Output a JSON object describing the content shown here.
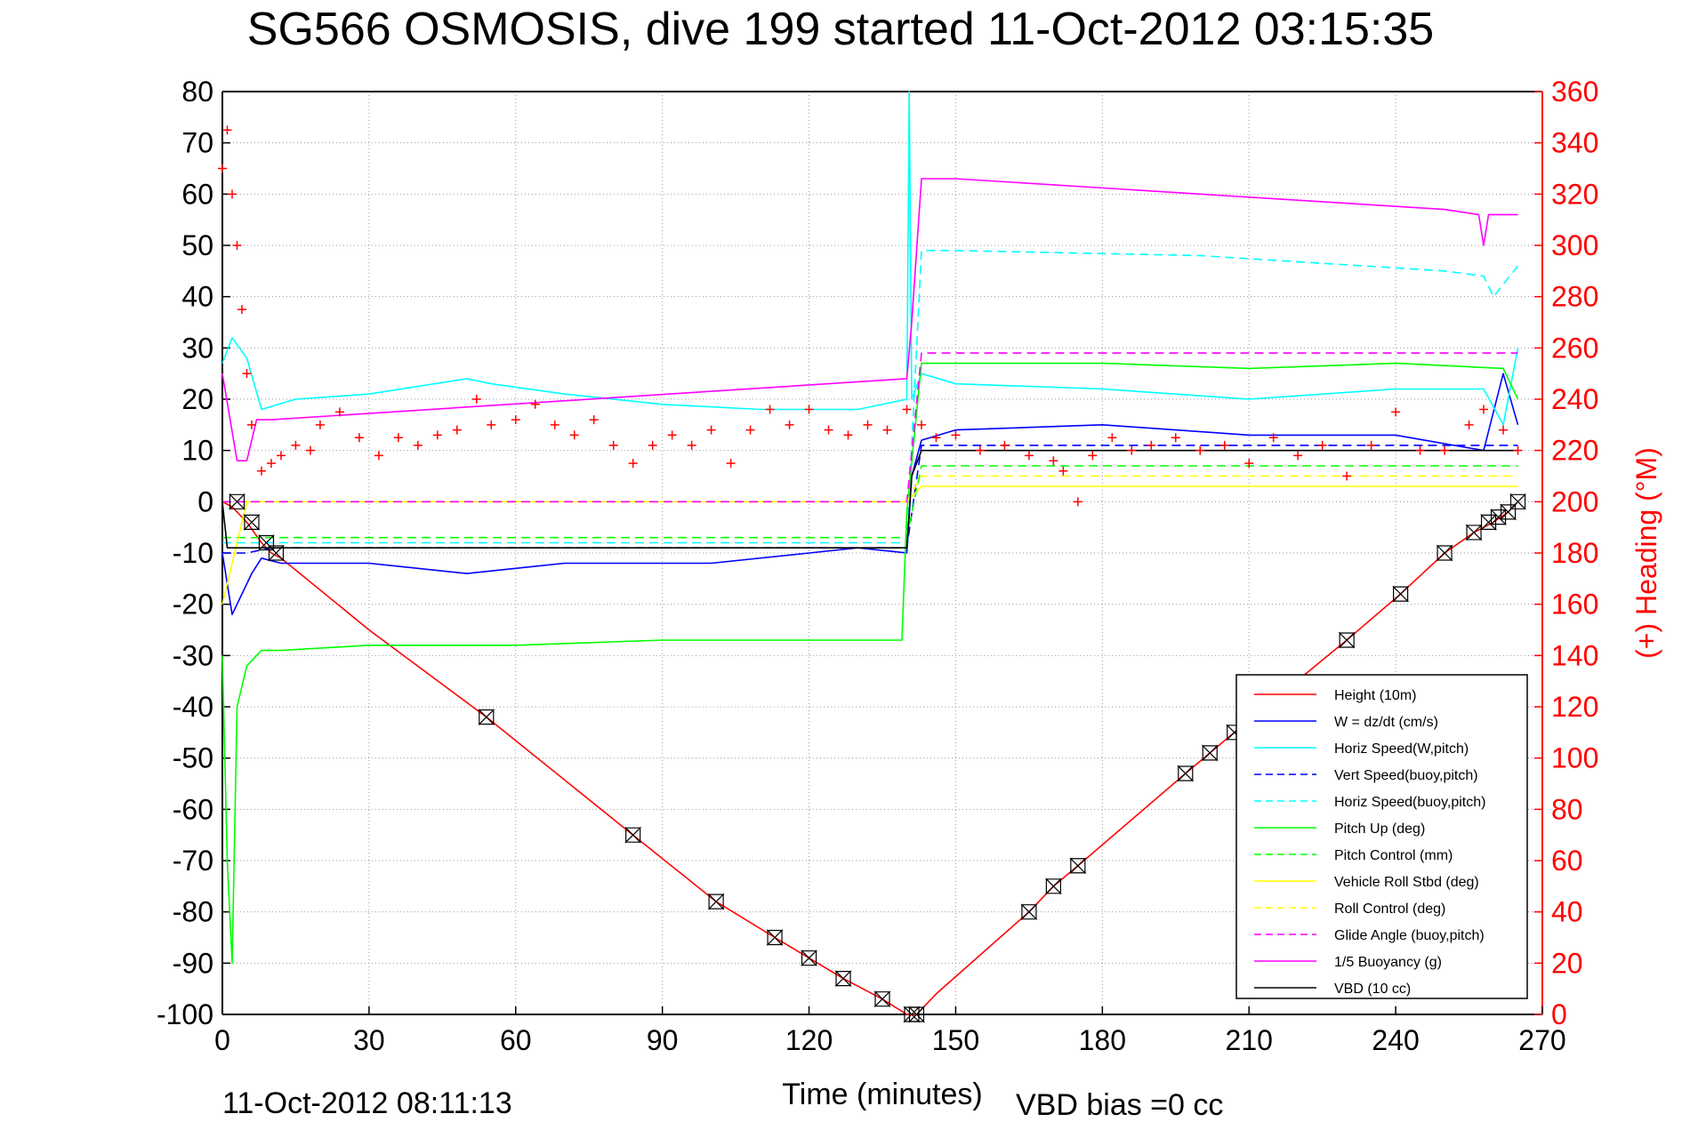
{
  "chart_data": {
    "type": "line",
    "title": "SG566 OSMOSIS, dive 199 started 11-Oct-2012 03:15:35",
    "xlabel": "Time (minutes)",
    "ylabel_left": "",
    "ylabel_right": "(+) Heading (°M)",
    "footer_left": "11-Oct-2012 08:11:13",
    "footer_right": "VBD bias =0 cc",
    "xlim": [
      0,
      270
    ],
    "ylim_left": [
      -100,
      80
    ],
    "ylim_right": [
      0,
      360
    ],
    "x_ticks": [
      "0",
      "30",
      "60",
      "90",
      "120",
      "150",
      "180",
      "210",
      "240",
      "270"
    ],
    "y_ticks_left": [
      "80",
      "70",
      "60",
      "50",
      "40",
      "30",
      "20",
      "10",
      "0",
      "-10",
      "-20",
      "-30",
      "-40",
      "-50",
      "-60",
      "-70",
      "-80",
      "-90",
      "-100"
    ],
    "y_ticks_right": [
      "360",
      "340",
      "320",
      "300",
      "280",
      "260",
      "240",
      "220",
      "200",
      "180",
      "160",
      "140",
      "120",
      "100",
      "80",
      "60",
      "40",
      "20",
      "0"
    ],
    "grid": true,
    "legend_position": "bottom-right",
    "series": [
      {
        "name": "Height (10m)",
        "color": "#ff0000",
        "style": "solid",
        "x": [
          0,
          2,
          5,
          8,
          10,
          12,
          30,
          54,
          84,
          101,
          113,
          120,
          127,
          135,
          140,
          142,
          146,
          165,
          170,
          175,
          197,
          202,
          207,
          230,
          241,
          250,
          256,
          260,
          263,
          265
        ],
        "y": [
          0,
          -1,
          -4,
          -8,
          -10,
          -11,
          -25,
          -42,
          -65,
          -78,
          -85,
          -89,
          -93,
          -97,
          -100,
          -100,
          -96,
          -80,
          -75,
          -71,
          -53,
          -49,
          -45,
          -27,
          -18,
          -10,
          -6,
          -4,
          -2,
          0
        ]
      },
      {
        "name": "W = dz/dt (cm/s)",
        "color": "#0000ff",
        "style": "solid",
        "x": [
          0,
          2,
          4,
          6,
          8,
          12,
          30,
          50,
          70,
          100,
          120,
          130,
          140,
          141,
          143,
          150,
          180,
          210,
          240,
          258,
          262,
          265
        ],
        "y": [
          -10,
          -22,
          -18,
          -14,
          -11,
          -12,
          -12,
          -14,
          -12,
          -12,
          -10,
          -9,
          -10,
          5,
          12,
          14,
          15,
          13,
          13,
          10,
          25,
          15
        ]
      },
      {
        "name": "Horiz Speed(W,pitch)",
        "color": "#00ffff",
        "style": "solid",
        "x": [
          0,
          2,
          5,
          8,
          15,
          30,
          50,
          55,
          70,
          90,
          110,
          130,
          140,
          140.5,
          141,
          143,
          150,
          180,
          210,
          240,
          258,
          262,
          265
        ],
        "y": [
          27,
          32,
          28,
          18,
          20,
          21,
          24,
          23,
          21,
          19,
          18,
          18,
          20,
          80,
          20,
          25,
          23,
          22,
          20,
          22,
          22,
          15,
          30
        ]
      },
      {
        "name": "Vert Speed(buoy,pitch)",
        "color": "#0000ff",
        "style": "dashed",
        "x": [
          0,
          5,
          10,
          140,
          143,
          150,
          260,
          265
        ],
        "y": [
          -10,
          -10,
          -9,
          -9,
          11,
          11,
          11,
          11
        ]
      },
      {
        "name": "Horiz Speed(buoy,pitch)",
        "color": "#00ffff",
        "style": "dashed",
        "x": [
          0,
          5,
          10,
          140,
          143,
          150,
          200,
          250,
          258,
          260,
          265
        ],
        "y": [
          -8,
          -8,
          -8,
          -8,
          49,
          49,
          48,
          45,
          44,
          40,
          46
        ]
      },
      {
        "name": "Pitch Up (deg)",
        "color": "#00ff00",
        "style": "solid",
        "x": [
          0,
          1,
          2,
          3,
          5,
          8,
          12,
          30,
          60,
          90,
          120,
          139,
          140,
          143,
          150,
          180,
          210,
          240,
          262,
          265
        ],
        "y": [
          -30,
          -70,
          -90,
          -40,
          -32,
          -29,
          -29,
          -28,
          -28,
          -27,
          -27,
          -27,
          -2,
          27,
          27,
          27,
          26,
          27,
          26,
          20
        ]
      },
      {
        "name": "Pitch Control (mm)",
        "color": "#00ff00",
        "style": "dashed",
        "x": [
          0,
          5,
          10,
          140,
          143,
          150,
          265
        ],
        "y": [
          -7,
          -7,
          -7,
          -7,
          7,
          7,
          7
        ]
      },
      {
        "name": "Vehicle Roll Stbd (deg)",
        "color": "#ffff00",
        "style": "solid",
        "x": [
          0,
          5,
          10,
          50,
          100,
          140,
          143,
          150,
          200,
          250,
          265
        ],
        "y": [
          -20,
          0,
          0,
          0,
          0,
          0,
          3,
          3,
          3,
          3,
          3
        ]
      },
      {
        "name": "Roll Control (deg)",
        "color": "#ffff00",
        "style": "dashed",
        "x": [
          0,
          5,
          10,
          140,
          143,
          150,
          265
        ],
        "y": [
          0,
          0,
          0,
          0,
          5,
          5,
          5
        ]
      },
      {
        "name": "Glide Angle (buoy,pitch)",
        "color": "#ff00ff",
        "style": "dashed",
        "x": [
          0,
          10,
          140,
          143,
          150,
          265
        ],
        "y": [
          0,
          0,
          0,
          29,
          29,
          29
        ]
      },
      {
        "name": "1/5 Buoyancy (g)",
        "color": "#ff00ff",
        "style": "solid",
        "x": [
          0,
          3,
          5,
          7,
          10,
          140,
          141,
          143,
          150,
          200,
          250,
          257,
          258,
          259,
          262,
          265
        ],
        "y": [
          25,
          8,
          8,
          16,
          16,
          24,
          35,
          63,
          63,
          60,
          57,
          56,
          50,
          56,
          56,
          56
        ]
      },
      {
        "name": "VBD (10 cc)",
        "color": "#000000",
        "style": "solid",
        "x": [
          0,
          1,
          3,
          10,
          140,
          141,
          143,
          150,
          265
        ],
        "y": [
          0,
          -9,
          -9,
          -9,
          -9,
          5,
          10,
          10,
          10
        ]
      }
    ],
    "heading": {
      "name": "Heading",
      "color": "#ff0000",
      "marker": "+",
      "axis": "right",
      "x": [
        0,
        1,
        2,
        3,
        4,
        5,
        6,
        8,
        10,
        12,
        15,
        18,
        20,
        24,
        28,
        32,
        36,
        40,
        44,
        48,
        52,
        55,
        60,
        64,
        68,
        72,
        76,
        80,
        84,
        88,
        92,
        96,
        100,
        104,
        108,
        112,
        116,
        120,
        124,
        128,
        132,
        136,
        140,
        143,
        146,
        150,
        155,
        160,
        165,
        170,
        172,
        175,
        178,
        182,
        186,
        190,
        195,
        200,
        205,
        210,
        215,
        220,
        225,
        230,
        235,
        240,
        245,
        250,
        255,
        258,
        262,
        265
      ],
      "y": [
        330,
        345,
        320,
        300,
        275,
        250,
        230,
        212,
        215,
        218,
        222,
        220,
        230,
        235,
        225,
        218,
        225,
        222,
        226,
        228,
        240,
        230,
        232,
        238,
        230,
        226,
        232,
        222,
        215,
        222,
        226,
        222,
        228,
        215,
        228,
        236,
        230,
        236,
        228,
        226,
        230,
        228,
        236,
        230,
        225,
        226,
        220,
        222,
        218,
        216,
        212,
        200,
        218,
        225,
        220,
        222,
        225,
        220,
        222,
        215,
        225,
        218,
        222,
        210,
        222,
        235,
        220,
        220,
        230,
        236,
        228,
        220
      ]
    },
    "depth_markers": {
      "marker": "hourglass",
      "color": "#000000",
      "x": [
        3,
        6,
        9,
        11,
        54,
        84,
        101,
        113,
        120,
        127,
        135,
        141,
        142,
        165,
        170,
        175,
        197,
        202,
        207,
        230,
        241,
        250,
        256,
        259,
        261,
        263,
        265
      ],
      "y": [
        0,
        -4,
        -8,
        -10,
        -42,
        -65,
        -78,
        -85,
        -89,
        -93,
        -97,
        -100,
        -100,
        -80,
        -75,
        -71,
        -53,
        -49,
        -45,
        -27,
        -18,
        -10,
        -6,
        -4,
        -3,
        -2,
        0
      ]
    }
  }
}
